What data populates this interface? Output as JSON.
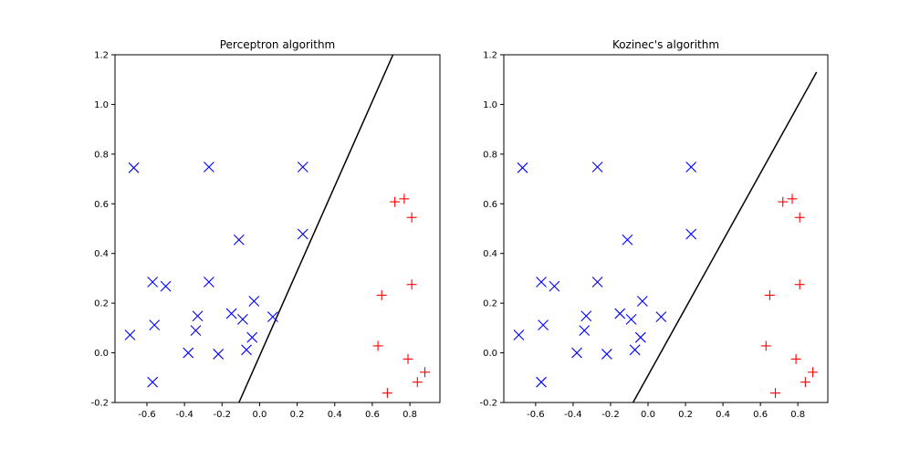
{
  "chart_data": [
    {
      "type": "scatter",
      "title": "Perceptron algorithm",
      "xlim": [
        -0.77,
        0.96
      ],
      "ylim": [
        -0.2,
        1.2
      ],
      "xticks": [
        "-0.6",
        "-0.4",
        "-0.2",
        "0.0",
        "0.2",
        "0.4",
        "0.6",
        "0.8"
      ],
      "yticks": [
        "-0.2",
        "0.0",
        "0.2",
        "0.4",
        "0.6",
        "0.8",
        "1.0",
        "1.2"
      ],
      "grid": false,
      "series": [
        {
          "marker": "x",
          "color": "#0000ff",
          "points": [
            [
              -0.67,
              0.745
            ],
            [
              -0.27,
              0.748
            ],
            [
              0.23,
              0.748
            ],
            [
              -0.11,
              0.455
            ],
            [
              0.23,
              0.478
            ],
            [
              -0.57,
              0.285
            ],
            [
              -0.5,
              0.268
            ],
            [
              -0.27,
              0.285
            ],
            [
              -0.03,
              0.208
            ],
            [
              -0.33,
              0.148
            ],
            [
              -0.15,
              0.158
            ],
            [
              -0.09,
              0.135
            ],
            [
              0.07,
              0.145
            ],
            [
              -0.56,
              0.112
            ],
            [
              -0.34,
              0.09
            ],
            [
              -0.69,
              0.072
            ],
            [
              -0.04,
              0.062
            ],
            [
              -0.38,
              0.0
            ],
            [
              -0.22,
              -0.005
            ],
            [
              -0.07,
              0.012
            ],
            [
              -0.57,
              -0.118
            ]
          ]
        },
        {
          "marker": "+",
          "color": "#ff0000",
          "points": [
            [
              0.72,
              0.608
            ],
            [
              0.77,
              0.62
            ],
            [
              0.81,
              0.545
            ],
            [
              0.65,
              0.232
            ],
            [
              0.81,
              0.275
            ],
            [
              0.63,
              0.028
            ],
            [
              0.79,
              -0.025
            ],
            [
              0.88,
              -0.078
            ],
            [
              0.84,
              -0.118
            ],
            [
              0.68,
              -0.162
            ]
          ]
        }
      ],
      "line": {
        "color": "#000000",
        "points": [
          [
            -0.11,
            -0.2
          ],
          [
            0.71,
            1.2
          ]
        ]
      }
    },
    {
      "type": "scatter",
      "title": "Kozinec's algorithm",
      "xlim": [
        -0.77,
        0.96
      ],
      "ylim": [
        -0.2,
        1.2
      ],
      "xticks": [
        "-0.6",
        "-0.4",
        "-0.2",
        "0.0",
        "0.2",
        "0.4",
        "0.6",
        "0.8"
      ],
      "yticks": [
        "-0.2",
        "0.0",
        "0.2",
        "0.4",
        "0.6",
        "0.8",
        "1.0",
        "1.2"
      ],
      "grid": false,
      "series": [
        {
          "marker": "x",
          "color": "#0000ff",
          "points": [
            [
              -0.67,
              0.745
            ],
            [
              -0.27,
              0.748
            ],
            [
              0.23,
              0.748
            ],
            [
              -0.11,
              0.455
            ],
            [
              0.23,
              0.478
            ],
            [
              -0.57,
              0.285
            ],
            [
              -0.5,
              0.268
            ],
            [
              -0.27,
              0.285
            ],
            [
              -0.03,
              0.208
            ],
            [
              -0.33,
              0.148
            ],
            [
              -0.15,
              0.158
            ],
            [
              -0.09,
              0.135
            ],
            [
              0.07,
              0.145
            ],
            [
              -0.56,
              0.112
            ],
            [
              -0.34,
              0.09
            ],
            [
              -0.69,
              0.072
            ],
            [
              -0.04,
              0.062
            ],
            [
              -0.38,
              0.0
            ],
            [
              -0.22,
              -0.005
            ],
            [
              -0.07,
              0.012
            ],
            [
              -0.57,
              -0.118
            ]
          ]
        },
        {
          "marker": "+",
          "color": "#ff0000",
          "points": [
            [
              0.72,
              0.608
            ],
            [
              0.77,
              0.62
            ],
            [
              0.81,
              0.545
            ],
            [
              0.65,
              0.232
            ],
            [
              0.81,
              0.275
            ],
            [
              0.63,
              0.028
            ],
            [
              0.79,
              -0.025
            ],
            [
              0.88,
              -0.078
            ],
            [
              0.84,
              -0.118
            ],
            [
              0.68,
              -0.162
            ]
          ]
        }
      ],
      "line": {
        "color": "#000000",
        "points": [
          [
            -0.08,
            -0.2
          ],
          [
            0.9,
            1.13
          ]
        ]
      }
    }
  ]
}
